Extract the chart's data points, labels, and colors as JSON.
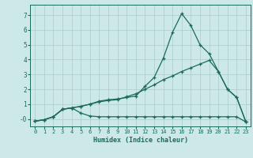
{
  "xlabel": "Humidex (Indice chaleur)",
  "bg_color": "#cce8e8",
  "grid_color": "#aacccc",
  "line_color": "#1a6b5a",
  "xlim": [
    -0.5,
    23.5
  ],
  "ylim": [
    -0.5,
    7.7
  ],
  "xticks": [
    0,
    1,
    2,
    3,
    4,
    5,
    6,
    7,
    8,
    9,
    10,
    11,
    12,
    13,
    14,
    15,
    16,
    17,
    18,
    19,
    20,
    21,
    22,
    23
  ],
  "yticks": [
    0,
    1,
    2,
    3,
    4,
    5,
    6,
    7
  ],
  "ytick_labels": [
    "-0",
    "1",
    "2",
    "3",
    "4",
    "5",
    "6",
    "7"
  ],
  "line1_x": [
    0,
    1,
    2,
    3,
    4,
    5,
    6,
    7,
    8,
    9,
    10,
    11,
    12,
    13,
    14,
    15,
    16,
    17,
    18,
    19,
    20,
    21,
    22,
    23
  ],
  "line1_y": [
    -0.15,
    -0.05,
    0.15,
    0.65,
    0.75,
    0.85,
    1.0,
    1.2,
    1.3,
    1.35,
    1.45,
    1.55,
    2.2,
    2.8,
    4.1,
    5.85,
    7.1,
    6.3,
    5.0,
    4.4,
    3.2,
    2.0,
    1.45,
    -0.2
  ],
  "line2_x": [
    0,
    1,
    2,
    3,
    4,
    5,
    6,
    7,
    8,
    9,
    10,
    11,
    12,
    13,
    14,
    15,
    16,
    17,
    18,
    19,
    20,
    21,
    22,
    23
  ],
  "line2_y": [
    -0.15,
    -0.05,
    0.15,
    0.65,
    0.75,
    0.85,
    1.0,
    1.15,
    1.25,
    1.3,
    1.5,
    1.7,
    2.0,
    2.3,
    2.65,
    2.9,
    3.2,
    3.45,
    3.7,
    3.95,
    3.2,
    2.0,
    1.45,
    -0.2
  ],
  "line3_x": [
    0,
    1,
    2,
    3,
    4,
    5,
    6,
    7,
    8,
    9,
    10,
    11,
    12,
    13,
    14,
    15,
    16,
    17,
    18,
    19,
    20,
    21,
    22,
    23
  ],
  "line3_y": [
    -0.15,
    -0.05,
    0.15,
    0.65,
    0.75,
    0.4,
    0.2,
    0.15,
    0.15,
    0.15,
    0.15,
    0.15,
    0.15,
    0.15,
    0.15,
    0.15,
    0.15,
    0.15,
    0.15,
    0.15,
    0.15,
    0.15,
    0.15,
    -0.2
  ]
}
